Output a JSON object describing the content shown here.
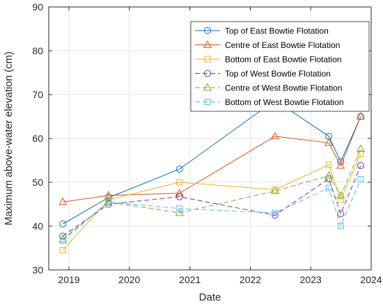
{
  "chart_data": {
    "type": "line",
    "xlabel": "Date",
    "ylabel": "Maximum above-water elevation (cm)",
    "xlim": [
      "2018-09-01",
      "2024-01-01"
    ],
    "ylim": [
      30,
      90
    ],
    "x_ticks": [
      "2019",
      "2020",
      "2021",
      "2022",
      "2023",
      "2024"
    ],
    "y_ticks": [
      "30",
      "40",
      "50",
      "60",
      "70",
      "80",
      "90"
    ],
    "grid": true,
    "legend_position": "top-right",
    "series": [
      {
        "name": "Top of East Bowtie Flotation",
        "color": "#0072BD",
        "marker": "circle",
        "dash": "solid",
        "x": [
          "2018-11-25",
          "2019-08-28",
          "2020-10-30",
          "2022-05-30",
          "2023-04-20",
          "2023-07-01",
          "2023-10-30"
        ],
        "y": [
          40.5,
          46.5,
          53,
          68.7,
          60.5,
          54.7,
          65
        ]
      },
      {
        "name": "Centre of East Bowtie Flotation",
        "color": "#D95319",
        "marker": "triangle",
        "dash": "solid",
        "x": [
          "2018-11-25",
          "2019-08-28",
          "2020-10-30",
          "2022-05-30",
          "2023-04-20",
          "2023-07-01",
          "2023-10-30"
        ],
        "y": [
          45.5,
          47,
          47.5,
          60.5,
          59,
          53.8,
          65
        ]
      },
      {
        "name": "Bottom of East Bowtie Flotation",
        "color": "#EDB120",
        "marker": "square",
        "dash": "solid",
        "x": [
          "2018-11-25",
          "2019-08-28",
          "2020-10-30",
          "2022-05-30",
          "2023-04-20",
          "2023-07-01",
          "2023-10-30"
        ],
        "y": [
          34.5,
          46,
          50,
          48.3,
          54,
          46,
          56.5
        ]
      },
      {
        "name": "Top of West Bowtie Flotation",
        "color": "#7E2F8E",
        "marker": "circle",
        "dash": "dashed",
        "x": [
          "2018-11-25",
          "2019-08-28",
          "2020-10-30",
          "2022-05-30",
          "2023-04-20",
          "2023-07-01",
          "2023-10-30"
        ],
        "y": [
          37.7,
          45,
          46.7,
          42.5,
          50.8,
          42.8,
          53.8
        ]
      },
      {
        "name": "Centre of West Bowtie Flotation",
        "color": "#77AC30",
        "marker": "triangle",
        "dash": "dashed",
        "x": [
          "2018-11-25",
          "2019-08-28",
          "2020-10-30",
          "2022-05-30",
          "2023-04-20",
          "2023-07-01",
          "2023-10-30"
        ],
        "y": [
          37,
          45.5,
          43,
          48,
          51.5,
          47,
          57.6
        ]
      },
      {
        "name": "Bottom of West Bowtie Flotation",
        "color": "#4DBEEE",
        "marker": "square",
        "dash": "dashed",
        "x": [
          "2018-11-25",
          "2019-08-28",
          "2020-10-30",
          "2022-05-30",
          "2023-04-20",
          "2023-07-01",
          "2023-10-30"
        ],
        "y": [
          36.7,
          45.5,
          44,
          43,
          48.7,
          40,
          50.7
        ]
      }
    ]
  }
}
